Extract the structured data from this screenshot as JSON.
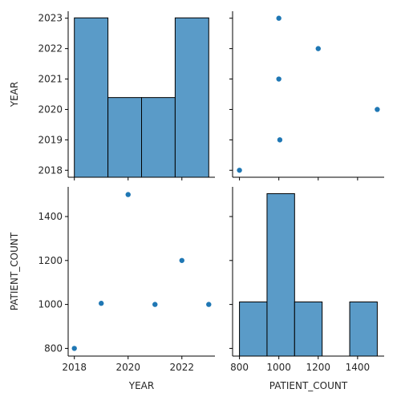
{
  "chart_data": {
    "type": "scatter",
    "kind": "pairplot",
    "variables": [
      "YEAR",
      "PATIENT_COUNT"
    ],
    "grid": false,
    "color": "#1f77b4",
    "hist_color": "#5a9bc8",
    "records": [
      {
        "YEAR": 2018,
        "PATIENT_COUNT": 800
      },
      {
        "YEAR": 2019,
        "PATIENT_COUNT": 1005
      },
      {
        "YEAR": 2020,
        "PATIENT_COUNT": 1500
      },
      {
        "YEAR": 2021,
        "PATIENT_COUNT": 1000
      },
      {
        "YEAR": 2022,
        "PATIENT_COUNT": 1200
      },
      {
        "YEAR": 2023,
        "PATIENT_COUNT": 1000
      }
    ],
    "axes": {
      "YEAR": {
        "label": "YEAR",
        "range": [
          2017.77,
          2023.23
        ],
        "ticks": [
          2018,
          2019,
          2020,
          2021,
          2022,
          2023
        ],
        "bottom_ticks": [
          2018,
          2020,
          2022
        ]
      },
      "PATIENT_COUNT": {
        "label": "PATIENT_COUNT",
        "range": [
          765,
          1535
        ],
        "ticks": [
          800,
          1000,
          1200,
          1400
        ],
        "bottom_ticks": [
          800,
          1000,
          1200,
          1400
        ]
      }
    },
    "histograms": {
      "YEAR": {
        "bins": [
          [
            2018.0,
            2019.25
          ],
          [
            2019.25,
            2020.5
          ],
          [
            2020.5,
            2021.75
          ],
          [
            2021.75,
            2023.0
          ]
        ],
        "counts": [
          2,
          1,
          1,
          2
        ]
      },
      "PATIENT_COUNT": {
        "bins": [
          [
            800,
            940
          ],
          [
            940,
            1080
          ],
          [
            1080,
            1220
          ],
          [
            1220,
            1360
          ],
          [
            1360,
            1500
          ]
        ],
        "counts": [
          1,
          3,
          1,
          0,
          1
        ]
      }
    }
  }
}
